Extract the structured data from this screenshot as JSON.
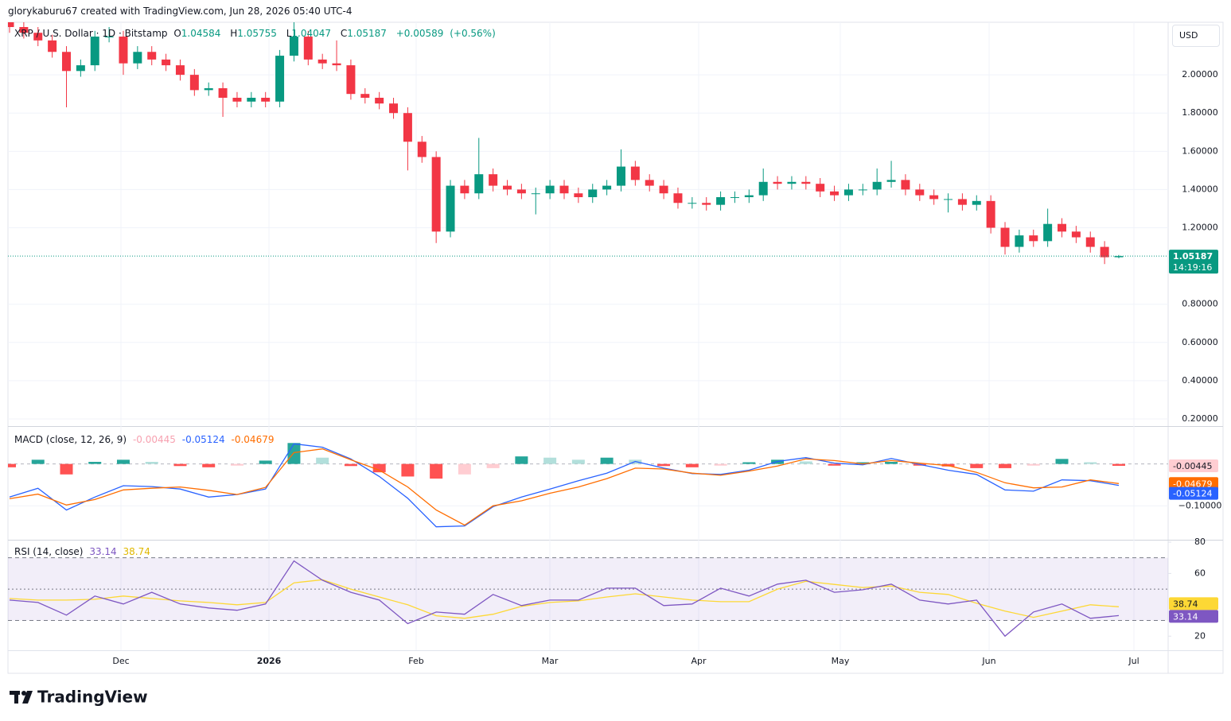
{
  "header": {
    "credit": "glorykaburu67 created with TradingView.com, Jun 28, 2026 05:40 UTC-4"
  },
  "branding": "TradingView",
  "chart_data": [
    {
      "type": "candlestick",
      "legend_symbol": "XRP / U.S. Dollar · 1D · Bitstamp",
      "legend_prefixes": [
        "O",
        "H",
        "L",
        "C"
      ],
      "change": "+0.00589",
      "change_pct": "(+0.56%)",
      "currency": "USD",
      "last_time": "14:19:16",
      "up_color": "#089981",
      "down_color": "#f23645",
      "grid": true,
      "x_labels": [
        "Dec",
        "2026",
        "Feb",
        "Mar",
        "Apr",
        "May",
        "Jun",
        "Jul"
      ],
      "ylim": [
        0.1625,
        2.275
      ],
      "yticks": [
        {
          "value": 2,
          "label": "2.00000"
        },
        {
          "value": 1.8,
          "label": "1.80000"
        },
        {
          "value": 1.6,
          "label": "1.60000"
        },
        {
          "value": 1.4,
          "label": "1.40000"
        },
        {
          "value": 1.2,
          "label": "1.20000"
        },
        {
          "value": 0.8,
          "label": "0.80000"
        },
        {
          "value": 0.6,
          "label": "0.60000"
        },
        {
          "value": 0.4,
          "label": "0.40000"
        },
        {
          "value": 0.2,
          "label": "0.20000"
        }
      ],
      "open": [
        2.28,
        2.25,
        2.22,
        2.18,
        2.12,
        2.02,
        2.05,
        2.2,
        2.2,
        2.06,
        2.12,
        2.08,
        2.05,
        2.0,
        1.92,
        1.93,
        1.88,
        1.86,
        1.88,
        1.86,
        2.1,
        2.2,
        2.08,
        2.06,
        2.05,
        1.9,
        1.88,
        1.85,
        1.8,
        1.65,
        1.57,
        1.18,
        1.42,
        1.38,
        1.48,
        1.42,
        1.4,
        1.38,
        1.38,
        1.42,
        1.38,
        1.36,
        1.4,
        1.42,
        1.52,
        1.45,
        1.42,
        1.38,
        1.33,
        1.33,
        1.32,
        1.36,
        1.36,
        1.37,
        1.44,
        1.43,
        1.44,
        1.43,
        1.39,
        1.37,
        1.4,
        1.4,
        1.44,
        1.45,
        1.4,
        1.37,
        1.35,
        1.35,
        1.32,
        1.34,
        1.2,
        1.1,
        1.16,
        1.13,
        1.22,
        1.18,
        1.15,
        1.1,
        1.04584
      ],
      "high": [
        2.31,
        2.28,
        2.25,
        2.21,
        2.15,
        2.08,
        2.23,
        2.25,
        2.23,
        2.15,
        2.15,
        2.11,
        2.08,
        2.03,
        1.96,
        1.96,
        1.91,
        1.91,
        1.91,
        2.13,
        2.3,
        2.23,
        2.11,
        2.18,
        2.08,
        1.93,
        1.91,
        1.88,
        1.83,
        1.68,
        1.6,
        1.45,
        1.45,
        1.67,
        1.51,
        1.45,
        1.43,
        1.41,
        1.45,
        1.45,
        1.41,
        1.43,
        1.45,
        1.61,
        1.55,
        1.48,
        1.45,
        1.41,
        1.36,
        1.36,
        1.39,
        1.39,
        1.4,
        1.51,
        1.47,
        1.47,
        1.47,
        1.46,
        1.42,
        1.43,
        1.43,
        1.51,
        1.55,
        1.48,
        1.43,
        1.4,
        1.38,
        1.38,
        1.37,
        1.37,
        1.23,
        1.19,
        1.19,
        1.3,
        1.25,
        1.21,
        1.18,
        1.13,
        1.05755
      ],
      "low": [
        2.22,
        2.19,
        2.15,
        2.09,
        1.83,
        1.99,
        2.02,
        2.17,
        2.0,
        2.03,
        2.05,
        2.02,
        1.97,
        1.89,
        1.89,
        1.78,
        1.83,
        1.83,
        1.83,
        1.83,
        2.07,
        2.05,
        2.03,
        2.02,
        1.87,
        1.85,
        1.82,
        1.77,
        1.5,
        1.54,
        1.12,
        1.15,
        1.35,
        1.35,
        1.39,
        1.37,
        1.35,
        1.27,
        1.35,
        1.35,
        1.33,
        1.33,
        1.37,
        1.39,
        1.42,
        1.39,
        1.35,
        1.3,
        1.3,
        1.29,
        1.29,
        1.33,
        1.33,
        1.34,
        1.4,
        1.4,
        1.4,
        1.36,
        1.34,
        1.34,
        1.37,
        1.37,
        1.41,
        1.37,
        1.34,
        1.32,
        1.28,
        1.29,
        1.29,
        1.17,
        1.06,
        1.07,
        1.1,
        1.1,
        1.15,
        1.12,
        1.07,
        1.01,
        1.04047
      ],
      "close": [
        2.25,
        2.22,
        2.18,
        2.12,
        2.02,
        2.05,
        2.2,
        2.2,
        2.06,
        2.12,
        2.08,
        2.05,
        2.0,
        1.92,
        1.93,
        1.88,
        1.86,
        1.88,
        1.86,
        2.1,
        2.2,
        2.08,
        2.06,
        2.05,
        1.9,
        1.88,
        1.85,
        1.8,
        1.65,
        1.57,
        1.18,
        1.42,
        1.38,
        1.48,
        1.42,
        1.4,
        1.38,
        1.38,
        1.42,
        1.38,
        1.36,
        1.4,
        1.42,
        1.52,
        1.45,
        1.42,
        1.38,
        1.33,
        1.33,
        1.32,
        1.36,
        1.36,
        1.37,
        1.44,
        1.43,
        1.44,
        1.43,
        1.39,
        1.37,
        1.4,
        1.4,
        1.44,
        1.45,
        1.4,
        1.37,
        1.35,
        1.35,
        1.32,
        1.34,
        1.2,
        1.1,
        1.16,
        1.13,
        1.22,
        1.18,
        1.15,
        1.1,
        1.04584,
        1.05187
      ]
    },
    {
      "type": "macd",
      "title": "MACD (close, 12, 26, 9)",
      "ylim": [
        -0.181,
        0.0885
      ],
      "yticks": [
        {
          "value": -0.1,
          "label": "−0.10000"
        }
      ],
      "histogram": {
        "colors": {
          "up_strong": "#26a69a",
          "up_weak": "#b2dfdb",
          "down_strong": "#ff5252",
          "down_weak": "#ffcdd2"
        },
        "values": [
          -0.008,
          0.01,
          -0.025,
          0.005,
          0.01,
          0.005,
          -0.005,
          -0.008,
          -0.004,
          0.008,
          0.05,
          0.015,
          -0.005,
          -0.02,
          -0.03,
          -0.035,
          -0.025,
          -0.01,
          0.018,
          0.015,
          0.01,
          0.015,
          0.01,
          -0.005,
          -0.008,
          -0.004,
          0.004,
          0.01,
          0.006,
          -0.004,
          0.004,
          0.005,
          -0.004,
          -0.006,
          -0.01,
          -0.01,
          -0.004,
          0.012,
          0.004,
          -0.00445
        ]
      },
      "macd": {
        "color": "#2962ff",
        "values": [
          -0.079,
          -0.058,
          -0.11,
          -0.079,
          -0.052,
          -0.054,
          -0.06,
          -0.079,
          -0.073,
          -0.06,
          0.048,
          0.04,
          0.012,
          -0.03,
          -0.082,
          -0.15,
          -0.148,
          -0.102,
          -0.079,
          -0.06,
          -0.04,
          -0.022,
          0.006,
          -0.01,
          -0.023,
          -0.025,
          -0.015,
          0.006,
          0.015,
          0.002,
          -0.002,
          0.013,
          -0.001,
          -0.015,
          -0.025,
          -0.062,
          -0.065,
          -0.038,
          -0.04,
          -0.05124
        ]
      },
      "signal": {
        "color": "#ff6d00",
        "values": [
          -0.083,
          -0.072,
          -0.098,
          -0.085,
          -0.062,
          -0.058,
          -0.055,
          -0.063,
          -0.073,
          -0.056,
          0.027,
          0.036,
          0.01,
          -0.015,
          -0.055,
          -0.11,
          -0.146,
          -0.1,
          -0.088,
          -0.07,
          -0.055,
          -0.035,
          -0.01,
          -0.012,
          -0.022,
          -0.027,
          -0.017,
          -0.005,
          0.012,
          0.008,
          0.0,
          0.008,
          0.002,
          -0.004,
          -0.02,
          -0.045,
          -0.057,
          -0.055,
          -0.038,
          -0.04679
        ]
      }
    },
    {
      "type": "rsi",
      "title": "RSI (14, close)",
      "ylim": [
        11,
        81
      ],
      "yticks": [
        80,
        60,
        20
      ],
      "bands": [
        70,
        50,
        30
      ],
      "rsi": {
        "color": "#7e57c2",
        "values": [
          43,
          41.5,
          33.4,
          45.6,
          40.5,
          48,
          40.5,
          38,
          36.5,
          40.5,
          68,
          55.7,
          48,
          43,
          28,
          35.4,
          34,
          46.6,
          39.5,
          43,
          43,
          50.6,
          50.6,
          39.5,
          40.5,
          50.6,
          45.6,
          53.2,
          55.7,
          48,
          49.6,
          53.2,
          43,
          40.5,
          43,
          20,
          35.4,
          40.5,
          31.4,
          33.14
        ]
      },
      "ma": {
        "color": "#fdd835",
        "values": [
          44,
          43,
          43,
          43.5,
          45.6,
          44,
          42.5,
          41.5,
          40,
          41.5,
          54,
          56,
          50,
          45,
          40,
          33,
          31.4,
          34,
          39,
          41.5,
          42.5,
          45,
          47,
          45,
          43,
          42,
          42,
          50,
          55,
          53,
          51,
          52,
          48,
          46.6,
          41,
          36,
          32,
          36,
          40,
          38.74
        ]
      }
    }
  ]
}
